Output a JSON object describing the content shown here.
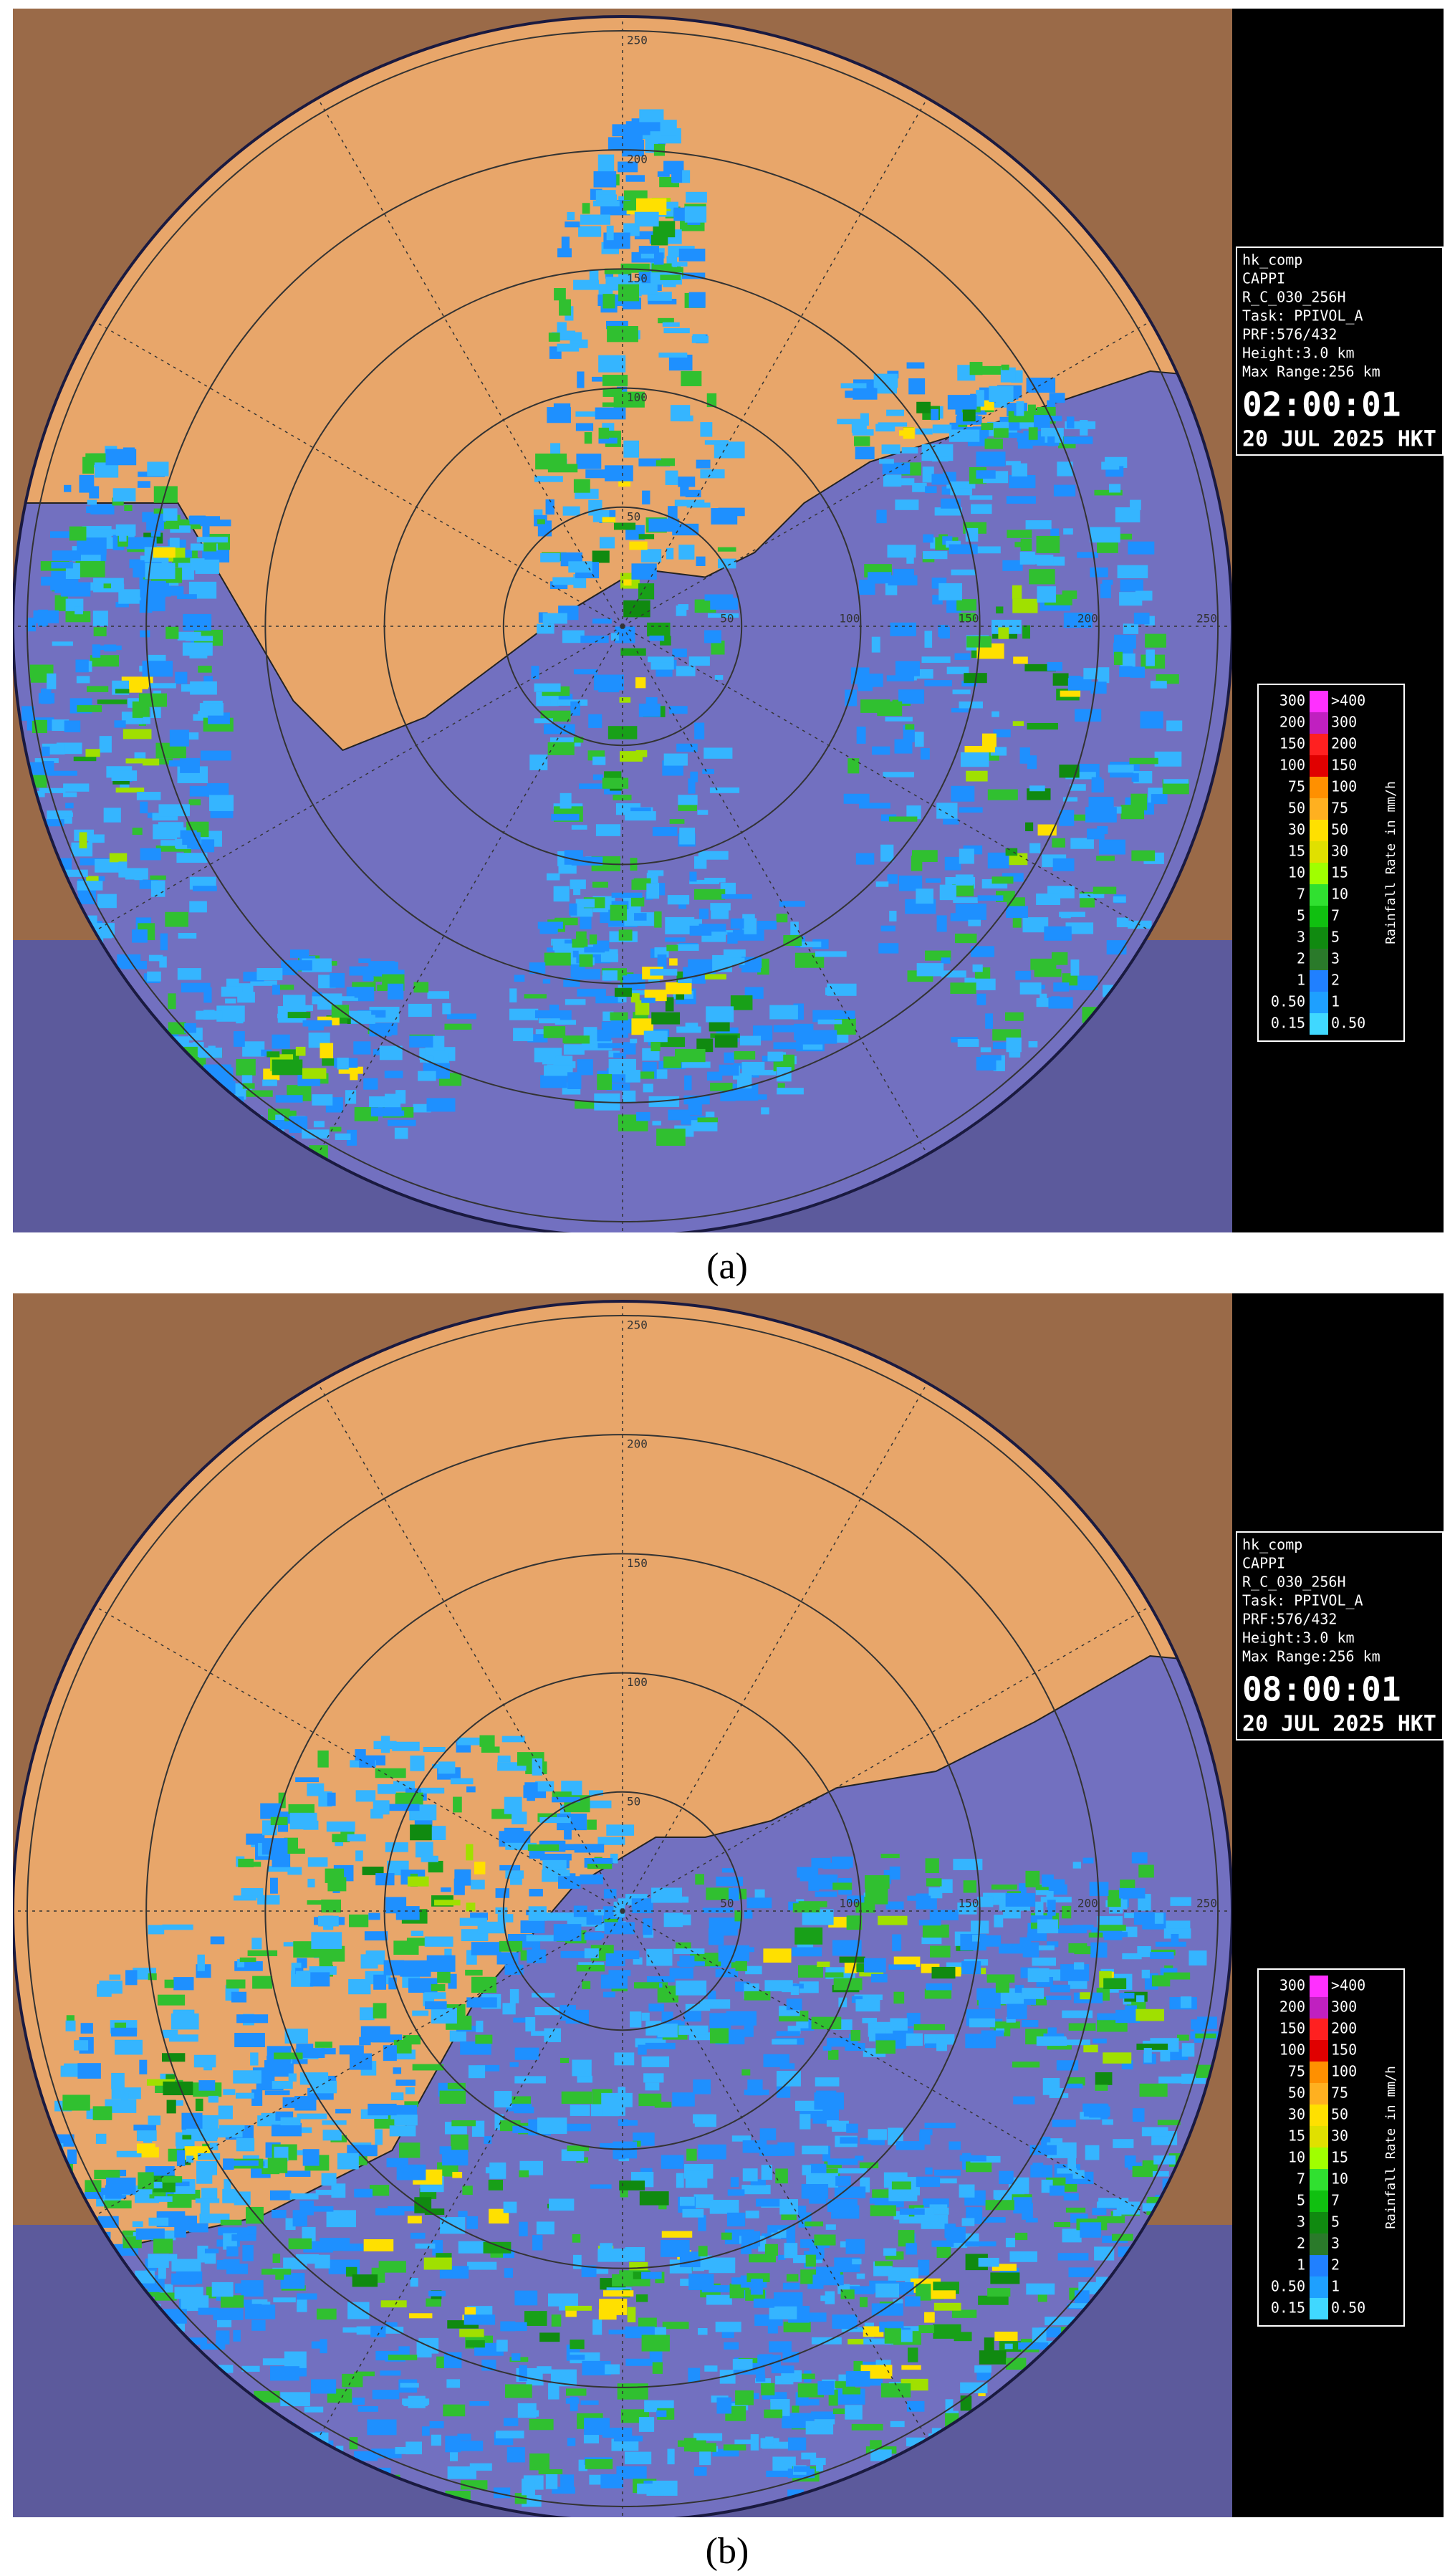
{
  "panels": [
    {
      "label": "(a)",
      "info": [
        "hk_comp",
        "CAPPI",
        "R_C_030_256H",
        "Task: PPIVOL_A",
        "PRF:576/432",
        "Height:3.0 km",
        "Max Range:256 km"
      ],
      "time": "02:00:01",
      "date": "20 JUL 2025 HKT"
    },
    {
      "label": "(b)",
      "info": [
        "hk_comp",
        "CAPPI",
        "R_C_030_256H",
        "Task: PPIVOL_A",
        "PRF:576/432",
        "Height:3.0 km",
        "Max Range:256 km"
      ],
      "time": "08:00:01",
      "date": "20 JUL 2025 HKT"
    }
  ],
  "ring_labels": [
    "50",
    "100",
    "150",
    "200",
    "250"
  ],
  "legend": {
    "title": "Rainfall Rate in mm/h",
    "rows": [
      [
        "300",
        ">400"
      ],
      [
        "200",
        "300"
      ],
      [
        "150",
        "200"
      ],
      [
        "100",
        "150"
      ],
      [
        "75",
        "100"
      ],
      [
        "50",
        "75"
      ],
      [
        "30",
        "50"
      ],
      [
        "15",
        "30"
      ],
      [
        "10",
        "15"
      ],
      [
        "7",
        "10"
      ],
      [
        "5",
        "7"
      ],
      [
        "3",
        "5"
      ],
      [
        "2",
        "3"
      ],
      [
        "1",
        "2"
      ],
      [
        "0.50",
        "1"
      ],
      [
        "0.15",
        "0.50"
      ]
    ],
    "colors": [
      "#ff30ff",
      "#c020c0",
      "#ff2020",
      "#e00000",
      "#ff9000",
      "#ffb020",
      "#ffe000",
      "#e0e000",
      "#a0ff00",
      "#30e030",
      "#10c010",
      "#108a10",
      "#2a7a2a",
      "#2080ff",
      "#1ea0ff",
      "#40d8ff"
    ]
  }
}
